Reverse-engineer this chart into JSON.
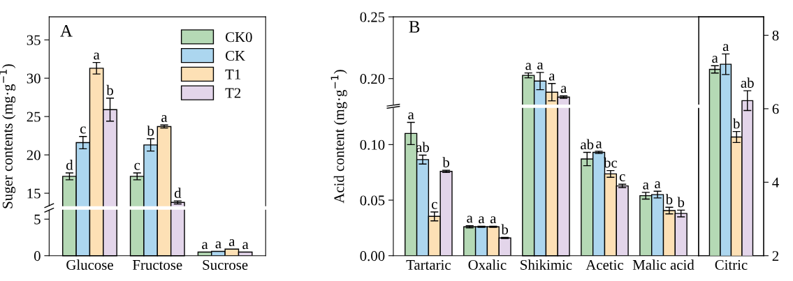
{
  "chart_data": [
    {
      "type": "bar",
      "categories": [
        null,
        null,
        null
      ],
      "ylabel": "Suger contents (mg·g$^{−1}$)",
      "annotations": [
        "A"
      ],
      "ylim": [
        13.3,
        38
      ],
      "yticks": [
        15,
        20,
        25,
        30,
        35
      ],
      "tick_labels": "y",
      "legend": "top right",
      "series": [
        {
          "name": "CK0",
          "color": "#b5d9b5",
          "values": [
            17.2,
            17.2,
            null
          ],
          "errors": [
            0.45,
            0.45,
            null
          ],
          "value_labels": [
            "d",
            "c",
            null
          ]
        },
        {
          "name": "CK",
          "color": "#acd6ef",
          "values": [
            21.6,
            21.3,
            null
          ],
          "errors": [
            0.8,
            0.8,
            null
          ],
          "value_labels": [
            "c",
            "b",
            null
          ]
        },
        {
          "name": "T1",
          "color": "#fde0b5",
          "values": [
            31.3,
            23.7,
            null
          ],
          "errors": [
            0.75,
            0.2,
            null
          ],
          "value_labels": [
            "a",
            "a",
            null
          ]
        },
        {
          "name": "T2",
          "color": "#e3d5ea",
          "values": [
            25.9,
            13.8,
            null
          ],
          "errors": [
            1.5,
            0.2,
            null
          ],
          "value_labels": [
            "b",
            "d",
            null
          ]
        }
      ]
    },
    {
      "type": "bar",
      "categories": [
        "Glucose",
        "Fructose",
        "Sucrose"
      ],
      "ylim": [
        0,
        6.3
      ],
      "yticks": [
        0,
        5
      ],
      "series": [
        {
          "color": "#b5d9b5",
          "values": [
            null,
            null,
            0.5
          ],
          "value_labels": [
            null,
            null,
            "a"
          ]
        },
        {
          "color": "#acd6ef",
          "values": [
            null,
            null,
            0.6
          ],
          "value_labels": [
            null,
            null,
            "a"
          ]
        },
        {
          "color": "#fde0b5",
          "values": [
            null,
            null,
            0.9
          ],
          "value_labels": [
            null,
            null,
            "a"
          ]
        },
        {
          "color": "#e3d5ea",
          "values": [
            null,
            null,
            0.5
          ],
          "value_labels": [
            null,
            null,
            "a"
          ]
        }
      ]
    },
    {
      "type": "bar",
      "categories": [
        null,
        null,
        null,
        null,
        null
      ],
      "ylabel": "Acid content (mg·g$^{−1}$)",
      "annotations": [
        "B"
      ],
      "ylim": [
        0.179,
        0.25
      ],
      "yticks": [
        {
          "value": 0.2,
          "label": "0.20"
        },
        {
          "value": 0.25,
          "label": "0.25"
        }
      ],
      "tick_labels": "y",
      "series": [
        {
          "color": "#b5d9b5",
          "values": [
            null,
            null,
            0.2026,
            null,
            null
          ],
          "errors": [
            null,
            null,
            0.002,
            null,
            null
          ],
          "value_labels": [
            null,
            null,
            "a",
            null,
            null
          ]
        },
        {
          "color": "#acd6ef",
          "values": [
            null,
            null,
            0.198,
            null,
            null
          ],
          "errors": [
            null,
            null,
            0.007,
            null,
            null
          ],
          "value_labels": [
            null,
            null,
            "a",
            null,
            null
          ]
        },
        {
          "color": "#fde0b5",
          "values": [
            null,
            null,
            0.189,
            null,
            null
          ],
          "errors": [
            null,
            null,
            0.007,
            null,
            null
          ],
          "value_labels": [
            null,
            null,
            "a",
            null,
            null
          ]
        },
        {
          "color": "#e3d5ea",
          "values": [
            null,
            null,
            0.185,
            null,
            null
          ],
          "errors": [
            null,
            null,
            0.001,
            null,
            null
          ],
          "value_labels": [
            null,
            null,
            "a",
            null,
            null
          ]
        }
      ]
    },
    {
      "type": "bar",
      "categories": [
        "Tartaric",
        "Oxalic",
        "Shikimic",
        "Acetic",
        "Malic acid"
      ],
      "ylim": [
        0,
        0.133
      ],
      "yticks": [
        {
          "value": 0,
          "label": "0.00"
        },
        {
          "value": 0.05,
          "label": "0.05"
        },
        {
          "value": 0.1,
          "label": "0.10"
        }
      ],
      "series": [
        {
          "color": "#b5d9b5",
          "values": [
            0.11,
            0.026,
            null,
            0.087,
            0.054
          ],
          "errors": [
            0.01,
            0.001,
            null,
            0.006,
            0.003
          ],
          "value_labels": [
            "a",
            "a",
            null,
            "ab",
            "a"
          ]
        },
        {
          "color": "#acd6ef",
          "values": [
            0.0865,
            0.026,
            null,
            0.093,
            0.055
          ],
          "errors": [
            0.004,
            0.0005,
            null,
            0.001,
            0.003
          ],
          "value_labels": [
            "ab",
            "a",
            null,
            "a",
            "a"
          ]
        },
        {
          "color": "#fde0b5",
          "values": [
            0.0354,
            0.026,
            null,
            0.0736,
            0.0406
          ],
          "errors": [
            0.004,
            0.0005,
            null,
            0.003,
            0.003
          ],
          "value_labels": [
            "c",
            "a",
            null,
            "bc",
            "b"
          ]
        },
        {
          "color": "#e3d5ea",
          "values": [
            0.0759,
            0.016,
            null,
            0.0628,
            0.038
          ],
          "errors": [
            0.001,
            0.0005,
            null,
            0.0015,
            0.003
          ],
          "value_labels": [
            "b",
            "b",
            null,
            "c",
            "b"
          ]
        }
      ]
    },
    {
      "type": "bar",
      "categories": [
        "Citric"
      ],
      "y2lim": [
        2,
        8.5
      ],
      "y2ticks": [
        2,
        4,
        6,
        8
      ],
      "series": [
        {
          "color": "#b5d9b5",
          "axis": "y2",
          "values": [
            7.07
          ],
          "errors": [
            0.1
          ],
          "value_labels": [
            "a"
          ]
        },
        {
          "color": "#acd6ef",
          "axis": "y2",
          "values": [
            7.21
          ],
          "errors": [
            0.28
          ],
          "value_labels": [
            "a"
          ]
        },
        {
          "color": "#fde0b5",
          "axis": "y2",
          "values": [
            5.23
          ],
          "errors": [
            0.15
          ],
          "value_labels": [
            "b"
          ]
        },
        {
          "color": "#e3d5ea",
          "axis": "y2",
          "values": [
            6.22
          ],
          "errors": [
            0.27
          ],
          "value_labels": [
            "ab"
          ]
        }
      ]
    }
  ]
}
